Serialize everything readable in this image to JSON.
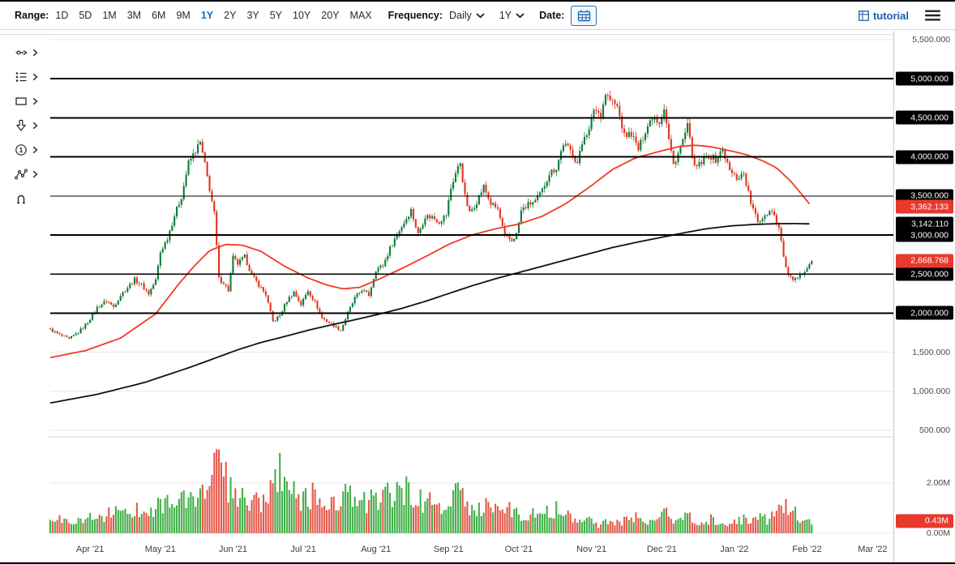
{
  "toolbar": {
    "range_label": "Range:",
    "ranges": [
      "1D",
      "5D",
      "1M",
      "3M",
      "6M",
      "9M",
      "1Y",
      "2Y",
      "3Y",
      "5Y",
      "10Y",
      "20Y",
      "MAX"
    ],
    "active_range": "1Y",
    "frequency_label": "Frequency:",
    "frequency_value": "Daily",
    "period_value": "1Y",
    "date_label": "Date:",
    "tutorial_label": "tutorial"
  },
  "icons": {
    "drawing_tools": [
      "trend-line-icon",
      "fibonacci-icon",
      "shapes-icon",
      "arrow-down-icon",
      "numbered-annotation-icon",
      "pattern-icon",
      "magnet-icon"
    ],
    "toolbar_icons": [
      "calendar-icon",
      "grid-icon",
      "hamburger-menu-icon",
      "chevron-down-icon",
      "chevron-right-icon"
    ]
  },
  "colors": {
    "accent_blue": "#1a6ab5",
    "candle_up": "#0c7c38",
    "candle_down": "#e0341f",
    "volume_up": "#43b04a",
    "volume_down": "#e45a4b",
    "ma_fast": "#f03b25",
    "ma_slow": "#111111",
    "badge_dark": "#000000",
    "badge_red": "#e8392d"
  },
  "chart_data": {
    "type": "candlestick",
    "title": "",
    "legend": "none",
    "grid": "horizontal",
    "x_axis": {
      "months": [
        [
          "Apr '21",
          17
        ],
        [
          "May '21",
          47
        ],
        [
          "Jun '21",
          78
        ],
        [
          "Jul '21",
          108
        ],
        [
          "Aug '21",
          139
        ],
        [
          "Sep '21",
          170
        ],
        [
          "Oct '21",
          200
        ],
        [
          "Nov '21",
          231
        ],
        [
          "Dec '21",
          261
        ],
        [
          "Jan '22",
          292
        ],
        [
          "Feb '22",
          323
        ],
        [
          "Mar '22",
          351
        ]
      ]
    },
    "price_axis": {
      "min": 500,
      "max": 5500,
      "step": 500,
      "plain_ticks": [
        {
          "value": 5500,
          "label": "5,500.000"
        },
        {
          "value": 1500,
          "label": "1,500.000"
        },
        {
          "value": 1000,
          "label": "1,000.000"
        },
        {
          "value": 500,
          "label": "500.000"
        }
      ]
    },
    "levels": [
      {
        "value": 5000,
        "label": "5,000.000",
        "weight": 2
      },
      {
        "value": 4500,
        "label": "4,500.000",
        "weight": 2
      },
      {
        "value": 4000,
        "label": "4,000.000",
        "weight": 2
      },
      {
        "value": 3500,
        "label": "3,500.000",
        "weight": 1
      },
      {
        "value": 3000,
        "label": "3,000.000",
        "weight": 2
      },
      {
        "value": 2500,
        "label": "2,500.000",
        "weight": 1
      },
      {
        "value": 2000,
        "label": "2,000.000",
        "weight": 2
      }
    ],
    "last_price": {
      "value": 2668.768,
      "label": "2,668.768"
    },
    "ma_fast_last": {
      "value": 3362.133,
      "label": "3,362.133"
    },
    "ma_slow_last": {
      "value": 3142.11,
      "label": "3,142.110"
    },
    "volume_axis": {
      "ticks": [
        {
          "value": 2,
          "label": "2.00M"
        },
        {
          "value": 0,
          "label": "0.00M"
        }
      ],
      "last": {
        "value": 0.43,
        "label": "0.43M"
      }
    },
    "days_span": 351,
    "candle_days": 325,
    "close_keypoints": [
      [
        0,
        1790
      ],
      [
        4,
        1720
      ],
      [
        8,
        1665
      ],
      [
        12,
        1755
      ],
      [
        15,
        1850
      ],
      [
        17,
        1930
      ],
      [
        20,
        2070
      ],
      [
        24,
        2160
      ],
      [
        27,
        2080
      ],
      [
        30,
        2230
      ],
      [
        33,
        2330
      ],
      [
        36,
        2430
      ],
      [
        39,
        2360
      ],
      [
        42,
        2250
      ],
      [
        45,
        2420
      ],
      [
        47,
        2780
      ],
      [
        50,
        2960
      ],
      [
        53,
        3250
      ],
      [
        56,
        3490
      ],
      [
        59,
        3920
      ],
      [
        62,
        4080
      ],
      [
        64,
        4180
      ],
      [
        66,
        3900
      ],
      [
        68,
        3590
      ],
      [
        70,
        3270
      ],
      [
        72,
        2440
      ],
      [
        74,
        2390
      ],
      [
        76,
        2290
      ],
      [
        78,
        2710
      ],
      [
        80,
        2630
      ],
      [
        83,
        2720
      ],
      [
        86,
        2490
      ],
      [
        89,
        2360
      ],
      [
        92,
        2240
      ],
      [
        95,
        1890
      ],
      [
        98,
        1970
      ],
      [
        101,
        2160
      ],
      [
        104,
        2270
      ],
      [
        107,
        2110
      ],
      [
        110,
        2290
      ],
      [
        113,
        2140
      ],
      [
        116,
        1940
      ],
      [
        119,
        1880
      ],
      [
        124,
        1780
      ],
      [
        127,
        2000
      ],
      [
        130,
        2190
      ],
      [
        133,
        2300
      ],
      [
        136,
        2230
      ],
      [
        138,
        2450
      ],
      [
        139,
        2560
      ],
      [
        142,
        2610
      ],
      [
        145,
        2830
      ],
      [
        148,
        3010
      ],
      [
        151,
        3160
      ],
      [
        154,
        3320
      ],
      [
        157,
        3010
      ],
      [
        160,
        3240
      ],
      [
        163,
        3230
      ],
      [
        166,
        3170
      ],
      [
        169,
        3260
      ],
      [
        171,
        3600
      ],
      [
        173,
        3790
      ],
      [
        175,
        3930
      ],
      [
        177,
        3490
      ],
      [
        179,
        3280
      ],
      [
        182,
        3430
      ],
      [
        185,
        3620
      ],
      [
        188,
        3400
      ],
      [
        191,
        3330
      ],
      [
        194,
        2980
      ],
      [
        197,
        2930
      ],
      [
        199,
        3010
      ],
      [
        201,
        3310
      ],
      [
        204,
        3390
      ],
      [
        207,
        3430
      ],
      [
        210,
        3570
      ],
      [
        213,
        3790
      ],
      [
        216,
        3860
      ],
      [
        219,
        4170
      ],
      [
        222,
        4080
      ],
      [
        225,
        3920
      ],
      [
        228,
        4290
      ],
      [
        230,
        4330
      ],
      [
        232,
        4620
      ],
      [
        235,
        4540
      ],
      [
        237,
        4810
      ],
      [
        239,
        4730
      ],
      [
        242,
        4640
      ],
      [
        245,
        4270
      ],
      [
        248,
        4300
      ],
      [
        251,
        4090
      ],
      [
        254,
        4340
      ],
      [
        257,
        4520
      ],
      [
        260,
        4450
      ],
      [
        262,
        4630
      ],
      [
        264,
        4220
      ],
      [
        266,
        3900
      ],
      [
        269,
        4120
      ],
      [
        272,
        4390
      ],
      [
        275,
        3850
      ],
      [
        278,
        3920
      ],
      [
        281,
        4020
      ],
      [
        284,
        3960
      ],
      [
        287,
        4090
      ],
      [
        290,
        3820
      ],
      [
        293,
        3730
      ],
      [
        296,
        3790
      ],
      [
        299,
        3410
      ],
      [
        302,
        3160
      ],
      [
        305,
        3260
      ],
      [
        308,
        3330
      ],
      [
        311,
        3090
      ],
      [
        314,
        2560
      ],
      [
        317,
        2400
      ],
      [
        320,
        2470
      ],
      [
        323,
        2600
      ],
      [
        325,
        2669
      ]
    ],
    "volume_keypoints_millions": [
      [
        0,
        0.55
      ],
      [
        8,
        0.5
      ],
      [
        16,
        0.6
      ],
      [
        24,
        0.75
      ],
      [
        32,
        0.85
      ],
      [
        40,
        0.95
      ],
      [
        47,
        1.15
      ],
      [
        54,
        1.3
      ],
      [
        60,
        1.25
      ],
      [
        64,
        1.6
      ],
      [
        68,
        2.1
      ],
      [
        70,
        2.6
      ],
      [
        72,
        3.3
      ],
      [
        74,
        2.2
      ],
      [
        77,
        1.7
      ],
      [
        80,
        1.4
      ],
      [
        85,
        1.15
      ],
      [
        90,
        1.35
      ],
      [
        95,
        1.6
      ],
      [
        99,
        2.55
      ],
      [
        103,
        1.6
      ],
      [
        107,
        1.3
      ],
      [
        110,
        1.6
      ],
      [
        114,
        1.3
      ],
      [
        118,
        1.15
      ],
      [
        122,
        1.4
      ],
      [
        126,
        1.5
      ],
      [
        130,
        1.25
      ],
      [
        134,
        1.2
      ],
      [
        139,
        1.35
      ],
      [
        143,
        1.55
      ],
      [
        147,
        1.4
      ],
      [
        151,
        1.7
      ],
      [
        155,
        1.5
      ],
      [
        159,
        1.3
      ],
      [
        163,
        1.15
      ],
      [
        167,
        1.0
      ],
      [
        171,
        1.2
      ],
      [
        174,
        1.55
      ],
      [
        177,
        1.3
      ],
      [
        181,
        0.95
      ],
      [
        185,
        1.05
      ],
      [
        189,
        1.1
      ],
      [
        193,
        1.15
      ],
      [
        197,
        0.85
      ],
      [
        201,
        0.75
      ],
      [
        205,
        0.7
      ],
      [
        209,
        0.9
      ],
      [
        213,
        0.85
      ],
      [
        217,
        1.0
      ],
      [
        221,
        0.75
      ],
      [
        225,
        0.65
      ],
      [
        228,
        0.6
      ],
      [
        231,
        0.5
      ],
      [
        234,
        0.3
      ],
      [
        237,
        0.65
      ],
      [
        240,
        0.45
      ],
      [
        243,
        0.35
      ],
      [
        246,
        0.55
      ],
      [
        250,
        0.62
      ],
      [
        254,
        0.5
      ],
      [
        258,
        0.45
      ],
      [
        261,
        0.68
      ],
      [
        264,
        0.8
      ],
      [
        267,
        0.55
      ],
      [
        270,
        0.72
      ],
      [
        273,
        0.6
      ],
      [
        276,
        0.45
      ],
      [
        279,
        0.4
      ],
      [
        282,
        0.55
      ],
      [
        285,
        0.42
      ],
      [
        288,
        0.48
      ],
      [
        291,
        0.36
      ],
      [
        294,
        0.5
      ],
      [
        297,
        0.56
      ],
      [
        300,
        0.46
      ],
      [
        303,
        0.62
      ],
      [
        306,
        0.5
      ],
      [
        309,
        0.68
      ],
      [
        312,
        0.92
      ],
      [
        315,
        1.1
      ],
      [
        318,
        0.8
      ],
      [
        321,
        0.62
      ],
      [
        325,
        0.43
      ]
    ],
    "ma_fast_keypoints": [
      [
        0,
        1430
      ],
      [
        15,
        1520
      ],
      [
        30,
        1680
      ],
      [
        45,
        1990
      ],
      [
        55,
        2380
      ],
      [
        62,
        2620
      ],
      [
        68,
        2800
      ],
      [
        75,
        2880
      ],
      [
        82,
        2870
      ],
      [
        90,
        2790
      ],
      [
        100,
        2600
      ],
      [
        110,
        2450
      ],
      [
        118,
        2360
      ],
      [
        125,
        2310
      ],
      [
        132,
        2330
      ],
      [
        140,
        2430
      ],
      [
        150,
        2570
      ],
      [
        160,
        2720
      ],
      [
        170,
        2880
      ],
      [
        180,
        3000
      ],
      [
        190,
        3080
      ],
      [
        200,
        3140
      ],
      [
        210,
        3240
      ],
      [
        220,
        3400
      ],
      [
        230,
        3610
      ],
      [
        240,
        3840
      ],
      [
        250,
        3990
      ],
      [
        260,
        4070
      ],
      [
        268,
        4130
      ],
      [
        275,
        4150
      ],
      [
        282,
        4130
      ],
      [
        290,
        4080
      ],
      [
        297,
        4030
      ],
      [
        304,
        3950
      ],
      [
        310,
        3860
      ],
      [
        316,
        3690
      ],
      [
        321,
        3510
      ],
      [
        325,
        3362.133
      ]
    ],
    "ma_slow_keypoints": [
      [
        0,
        850
      ],
      [
        20,
        960
      ],
      [
        40,
        1110
      ],
      [
        60,
        1310
      ],
      [
        70,
        1420
      ],
      [
        80,
        1530
      ],
      [
        90,
        1625
      ],
      [
        100,
        1700
      ],
      [
        110,
        1780
      ],
      [
        120,
        1850
      ],
      [
        130,
        1915
      ],
      [
        140,
        1985
      ],
      [
        150,
        2060
      ],
      [
        160,
        2150
      ],
      [
        170,
        2250
      ],
      [
        180,
        2350
      ],
      [
        190,
        2440
      ],
      [
        200,
        2520
      ],
      [
        210,
        2600
      ],
      [
        220,
        2680
      ],
      [
        230,
        2760
      ],
      [
        240,
        2840
      ],
      [
        250,
        2905
      ],
      [
        260,
        2965
      ],
      [
        270,
        3025
      ],
      [
        280,
        3080
      ],
      [
        290,
        3115
      ],
      [
        300,
        3135
      ],
      [
        310,
        3145
      ],
      [
        318,
        3146
      ],
      [
        325,
        3142.11
      ]
    ]
  }
}
